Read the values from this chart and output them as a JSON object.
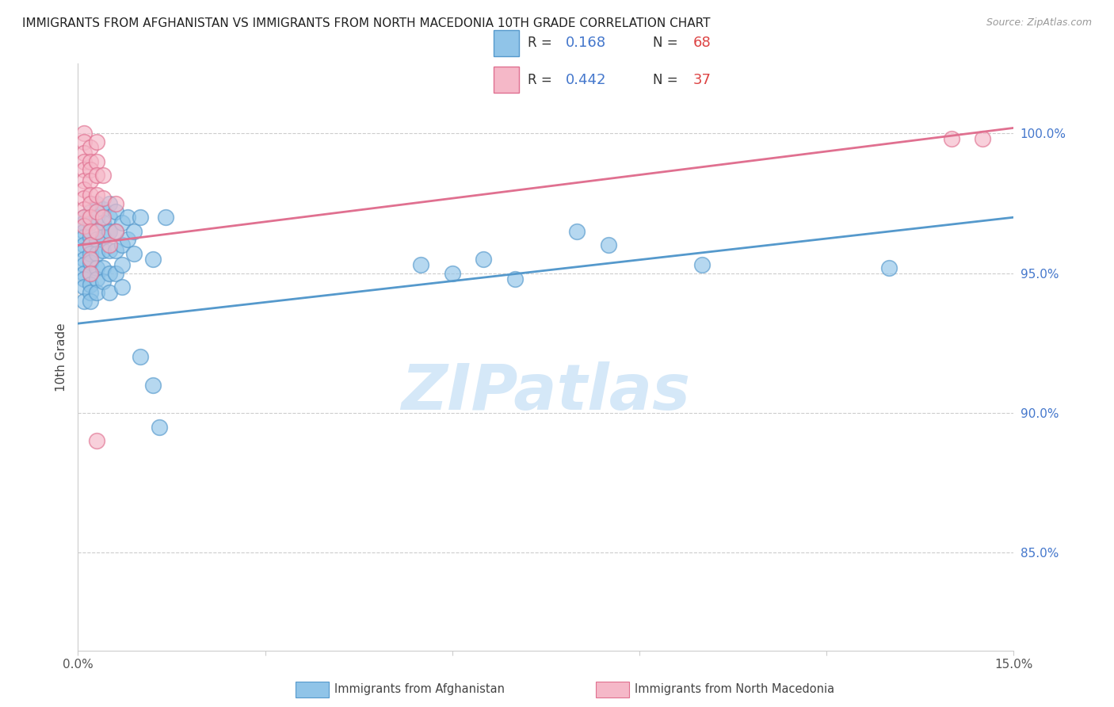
{
  "title": "IMMIGRANTS FROM AFGHANISTAN VS IMMIGRANTS FROM NORTH MACEDONIA 10TH GRADE CORRELATION CHART",
  "source": "Source: ZipAtlas.com",
  "ylabel": "10th Grade",
  "yaxis_labels": [
    "100.0%",
    "95.0%",
    "90.0%",
    "85.0%"
  ],
  "yaxis_values": [
    1.0,
    0.95,
    0.9,
    0.85
  ],
  "xmin": 0.0,
  "xmax": 0.15,
  "ymin": 0.815,
  "ymax": 1.025,
  "legend1_R": "0.168",
  "legend1_N": "68",
  "legend2_R": "0.442",
  "legend2_N": "37",
  "afghanistan_color": "#90c4e8",
  "north_macedonia_color": "#f5b8c8",
  "afghanistan_edge": "#5599cc",
  "north_macedonia_edge": "#e07090",
  "trendline_afghanistan": "#5599cc",
  "trendline_north_macedonia": "#e07090",
  "watermark_color": "#d5e8f8",
  "afghanistan_scatter": [
    [
      0.001,
      0.97
    ],
    [
      0.001,
      0.968
    ],
    [
      0.001,
      0.965
    ],
    [
      0.001,
      0.963
    ],
    [
      0.001,
      0.96
    ],
    [
      0.001,
      0.958
    ],
    [
      0.001,
      0.955
    ],
    [
      0.001,
      0.953
    ],
    [
      0.001,
      0.95
    ],
    [
      0.001,
      0.948
    ],
    [
      0.001,
      0.945
    ],
    [
      0.001,
      0.94
    ],
    [
      0.002,
      0.972
    ],
    [
      0.002,
      0.968
    ],
    [
      0.002,
      0.963
    ],
    [
      0.002,
      0.96
    ],
    [
      0.002,
      0.957
    ],
    [
      0.002,
      0.954
    ],
    [
      0.002,
      0.95
    ],
    [
      0.002,
      0.946
    ],
    [
      0.002,
      0.943
    ],
    [
      0.002,
      0.94
    ],
    [
      0.003,
      0.975
    ],
    [
      0.003,
      0.97
    ],
    [
      0.003,
      0.965
    ],
    [
      0.003,
      0.962
    ],
    [
      0.003,
      0.957
    ],
    [
      0.003,
      0.952
    ],
    [
      0.003,
      0.948
    ],
    [
      0.003,
      0.943
    ],
    [
      0.004,
      0.973
    ],
    [
      0.004,
      0.968
    ],
    [
      0.004,
      0.963
    ],
    [
      0.004,
      0.958
    ],
    [
      0.004,
      0.952
    ],
    [
      0.004,
      0.947
    ],
    [
      0.005,
      0.975
    ],
    [
      0.005,
      0.97
    ],
    [
      0.005,
      0.965
    ],
    [
      0.005,
      0.958
    ],
    [
      0.005,
      0.95
    ],
    [
      0.005,
      0.943
    ],
    [
      0.006,
      0.972
    ],
    [
      0.006,
      0.965
    ],
    [
      0.006,
      0.958
    ],
    [
      0.006,
      0.95
    ],
    [
      0.007,
      0.968
    ],
    [
      0.007,
      0.96
    ],
    [
      0.007,
      0.953
    ],
    [
      0.007,
      0.945
    ],
    [
      0.008,
      0.97
    ],
    [
      0.008,
      0.962
    ],
    [
      0.009,
      0.965
    ],
    [
      0.009,
      0.957
    ],
    [
      0.01,
      0.97
    ],
    [
      0.01,
      0.92
    ],
    [
      0.012,
      0.955
    ],
    [
      0.012,
      0.91
    ],
    [
      0.013,
      0.895
    ],
    [
      0.014,
      0.97
    ],
    [
      0.055,
      0.953
    ],
    [
      0.06,
      0.95
    ],
    [
      0.065,
      0.955
    ],
    [
      0.07,
      0.948
    ],
    [
      0.08,
      0.965
    ],
    [
      0.085,
      0.96
    ],
    [
      0.1,
      0.953
    ],
    [
      0.13,
      0.952
    ]
  ],
  "north_macedonia_scatter": [
    [
      0.001,
      1.0
    ],
    [
      0.001,
      0.997
    ],
    [
      0.001,
      0.993
    ],
    [
      0.001,
      0.99
    ],
    [
      0.001,
      0.987
    ],
    [
      0.001,
      0.983
    ],
    [
      0.001,
      0.98
    ],
    [
      0.001,
      0.977
    ],
    [
      0.001,
      0.973
    ],
    [
      0.001,
      0.97
    ],
    [
      0.001,
      0.967
    ],
    [
      0.002,
      0.995
    ],
    [
      0.002,
      0.99
    ],
    [
      0.002,
      0.987
    ],
    [
      0.002,
      0.983
    ],
    [
      0.002,
      0.978
    ],
    [
      0.002,
      0.975
    ],
    [
      0.002,
      0.97
    ],
    [
      0.002,
      0.965
    ],
    [
      0.002,
      0.96
    ],
    [
      0.002,
      0.955
    ],
    [
      0.002,
      0.95
    ],
    [
      0.003,
      0.997
    ],
    [
      0.003,
      0.99
    ],
    [
      0.003,
      0.985
    ],
    [
      0.003,
      0.978
    ],
    [
      0.003,
      0.972
    ],
    [
      0.003,
      0.965
    ],
    [
      0.003,
      0.89
    ],
    [
      0.004,
      0.985
    ],
    [
      0.004,
      0.977
    ],
    [
      0.004,
      0.97
    ],
    [
      0.005,
      0.96
    ],
    [
      0.006,
      0.975
    ],
    [
      0.006,
      0.965
    ],
    [
      0.14,
      0.998
    ],
    [
      0.145,
      0.998
    ]
  ]
}
